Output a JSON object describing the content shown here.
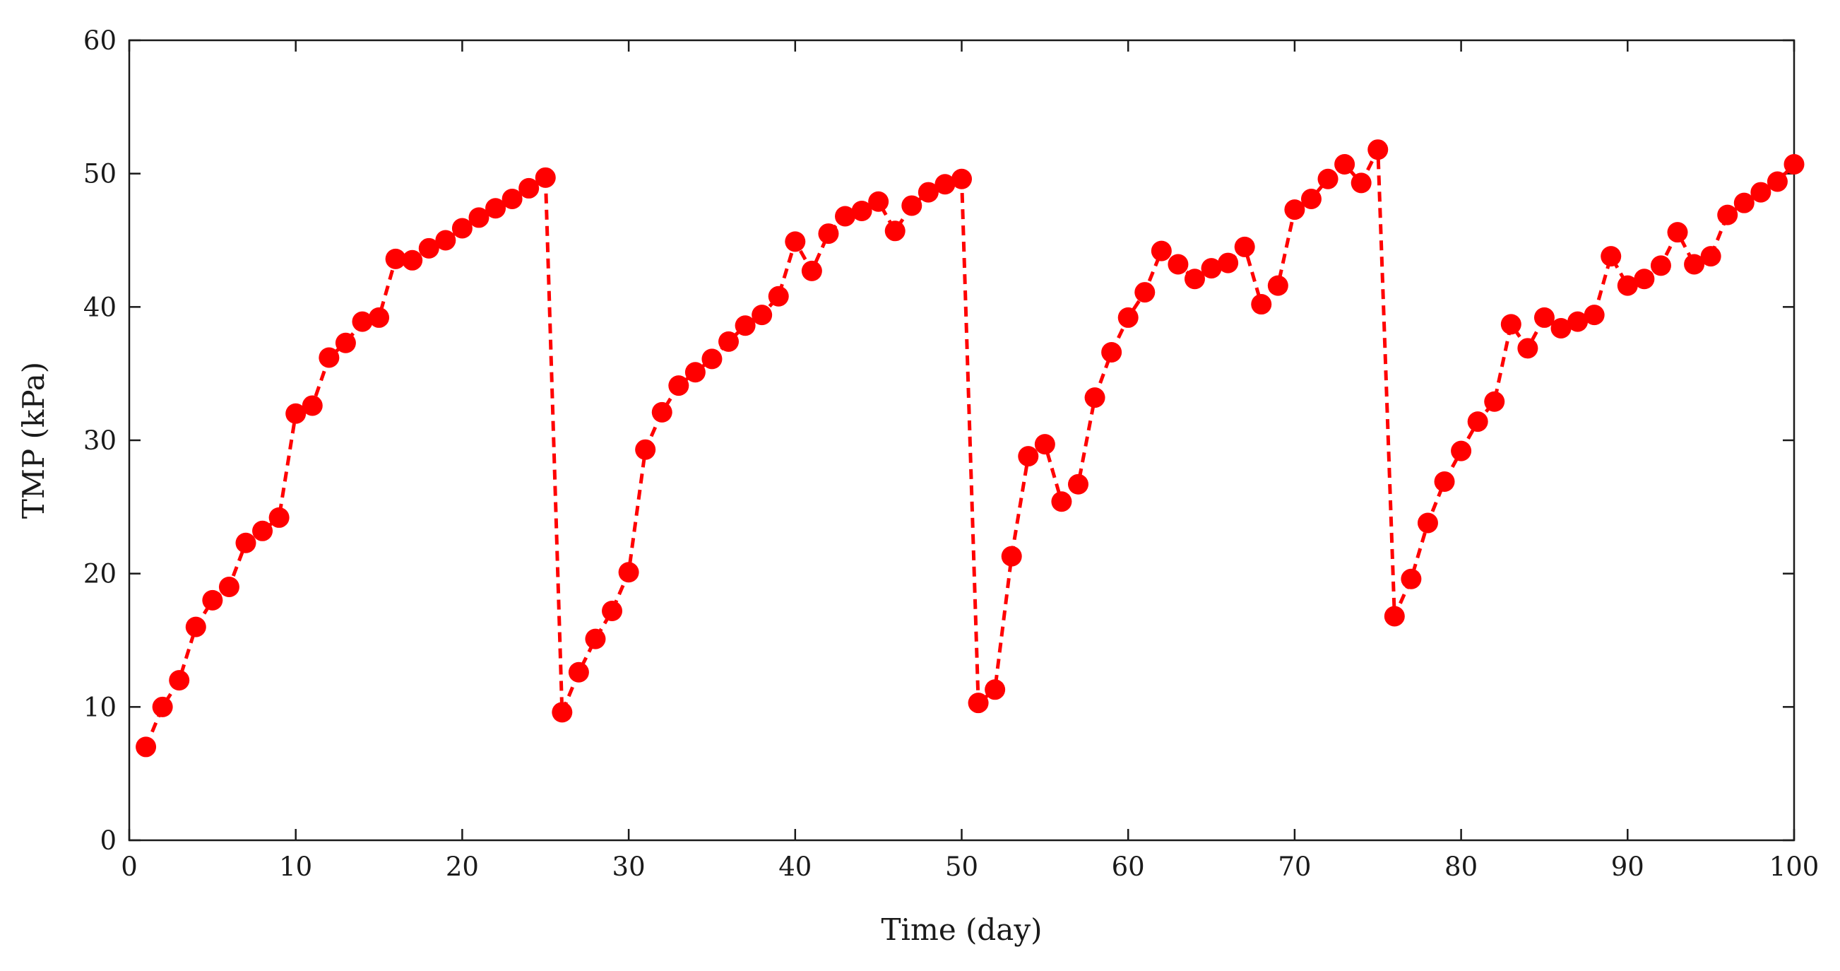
{
  "chart_data": {
    "type": "line",
    "title": "",
    "xlabel": "Time (day)",
    "ylabel": "TMP (kPa)",
    "xlim": [
      0,
      100
    ],
    "ylim": [
      0,
      60
    ],
    "xticks": [
      0,
      10,
      20,
      30,
      40,
      50,
      60,
      70,
      80,
      90,
      100
    ],
    "yticks": [
      0,
      10,
      20,
      30,
      40,
      50,
      60
    ],
    "grid": false,
    "legend": false,
    "series": [
      {
        "name": "TMP",
        "color": "#ff0000",
        "line_style": "dashed",
        "marker": "circle",
        "x": [
          1,
          2,
          3,
          4,
          5,
          6,
          7,
          8,
          9,
          10,
          11,
          12,
          13,
          14,
          15,
          16,
          17,
          18,
          19,
          20,
          21,
          22,
          23,
          24,
          25,
          26,
          27,
          28,
          29,
          30,
          31,
          32,
          33,
          34,
          35,
          36,
          37,
          38,
          39,
          40,
          41,
          42,
          43,
          44,
          45,
          46,
          47,
          48,
          49,
          50,
          51,
          52,
          53,
          54,
          55,
          56,
          57,
          58,
          59,
          60,
          61,
          62,
          63,
          64,
          65,
          66,
          67,
          68,
          69,
          70,
          71,
          72,
          73,
          74,
          75,
          76,
          77,
          78,
          79,
          80,
          81,
          82,
          83,
          84,
          85,
          86,
          87,
          88,
          89,
          90,
          91,
          92,
          93,
          94,
          95,
          96,
          97,
          98,
          99,
          100
        ],
        "values": [
          7.0,
          10.0,
          12.0,
          16.0,
          18.0,
          19.0,
          22.3,
          23.2,
          24.2,
          32.0,
          32.6,
          36.2,
          37.3,
          38.9,
          39.2,
          43.6,
          43.5,
          44.4,
          45.0,
          45.9,
          46.7,
          47.4,
          48.1,
          48.9,
          49.7,
          9.6,
          12.6,
          15.1,
          17.2,
          20.1,
          29.3,
          32.1,
          34.1,
          35.1,
          36.1,
          37.4,
          38.6,
          39.4,
          40.8,
          44.9,
          42.7,
          45.5,
          46.8,
          47.2,
          47.9,
          45.7,
          47.6,
          48.6,
          49.2,
          49.6,
          10.3,
          11.3,
          21.3,
          28.8,
          29.7,
          25.4,
          26.7,
          33.2,
          36.6,
          39.2,
          41.1,
          44.2,
          43.2,
          42.1,
          42.9,
          43.3,
          44.5,
          40.2,
          41.6,
          47.3,
          48.1,
          49.6,
          50.7,
          49.3,
          51.8,
          16.8,
          19.6,
          23.8,
          26.9,
          29.2,
          31.4,
          32.9,
          38.7,
          36.9,
          39.2,
          38.4,
          38.9,
          39.4,
          43.8,
          41.6,
          42.1,
          43.1,
          45.6,
          43.2,
          43.8,
          46.9,
          47.8,
          48.6,
          49.4,
          50.7
        ]
      }
    ]
  }
}
